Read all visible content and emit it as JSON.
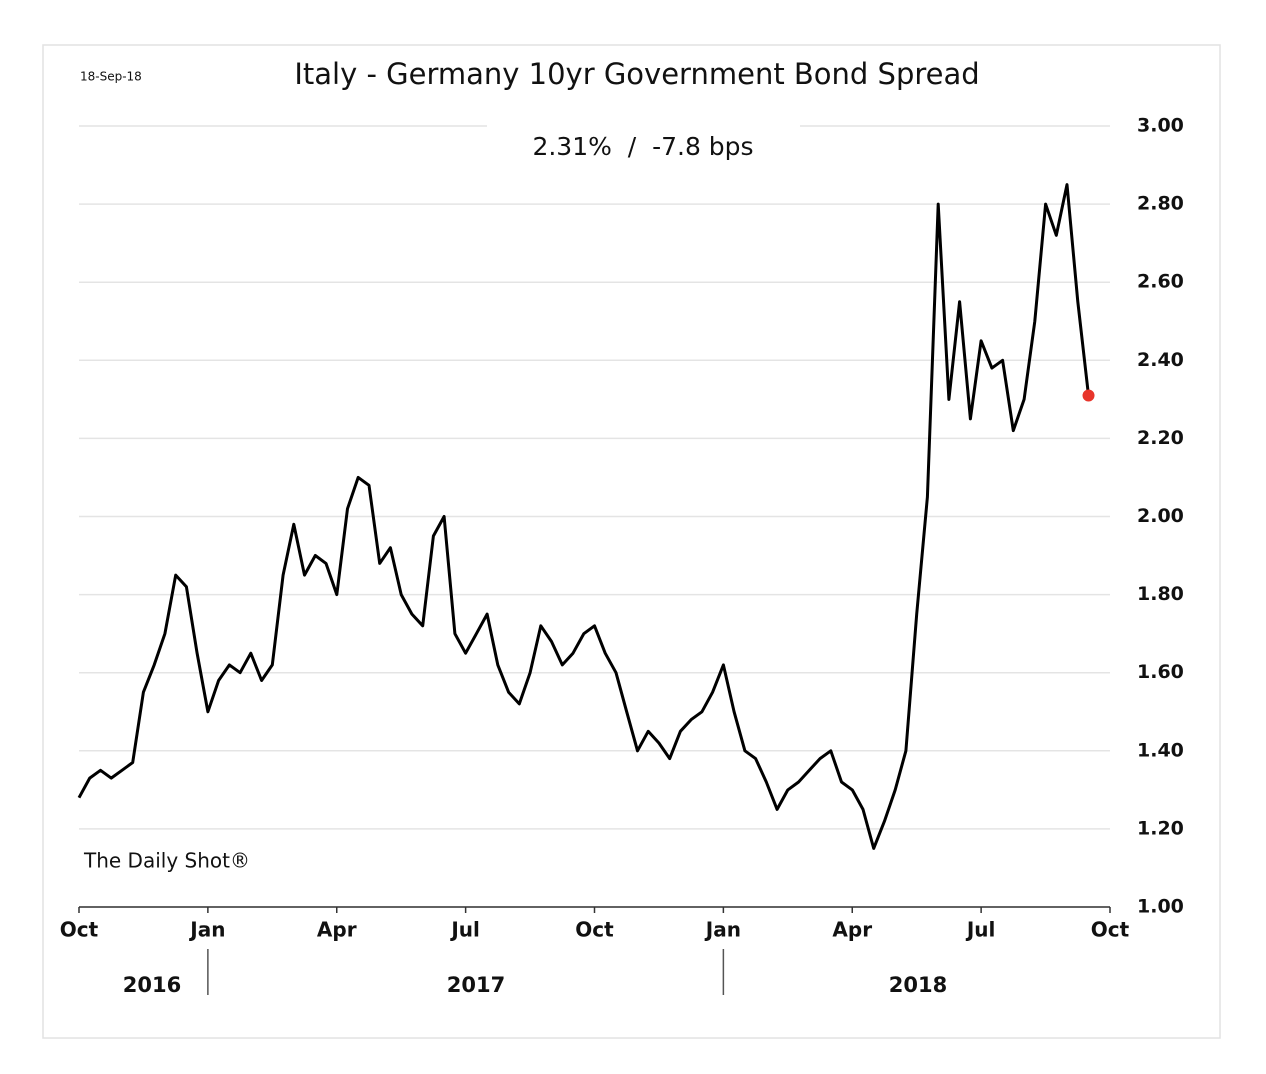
{
  "chart_data": {
    "type": "line",
    "date": "18-Sep-18",
    "title": "Italy - Germany 10yr Government Bond Spread",
    "subtitle": "2.31%  /  -7.8 bps",
    "source": "The Daily Shot®",
    "years": [
      "2016",
      "2017",
      "2018"
    ],
    "categories": [
      "Oct",
      null,
      null,
      null,
      null,
      null,
      null,
      null,
      null,
      null,
      null,
      null,
      "Jan",
      null,
      null,
      null,
      null,
      null,
      null,
      null,
      null,
      null,
      null,
      null,
      "Apr",
      null,
      null,
      null,
      null,
      null,
      null,
      null,
      null,
      null,
      null,
      null,
      "Jul",
      null,
      null,
      null,
      null,
      null,
      null,
      null,
      null,
      null,
      null,
      null,
      "Oct",
      null,
      null,
      null,
      null,
      null,
      null,
      null,
      null,
      null,
      null,
      null,
      "Jan",
      null,
      null,
      null,
      null,
      null,
      null,
      null,
      null,
      null,
      null,
      null,
      "Apr",
      null,
      null,
      null,
      null,
      null,
      null,
      null,
      null,
      null,
      null,
      null,
      "Jul",
      null,
      null,
      null,
      null,
      null,
      null,
      null,
      null,
      null,
      null,
      null,
      "Oct"
    ],
    "values": [
      1.28,
      1.33,
      1.35,
      1.33,
      1.35,
      1.37,
      1.55,
      1.62,
      1.7,
      1.85,
      1.82,
      1.65,
      1.5,
      1.58,
      1.62,
      1.6,
      1.65,
      1.58,
      1.62,
      1.85,
      1.98,
      1.85,
      1.9,
      1.88,
      1.8,
      2.02,
      2.1,
      2.08,
      1.88,
      1.92,
      1.8,
      1.75,
      1.72,
      1.95,
      2.0,
      1.7,
      1.65,
      1.7,
      1.75,
      1.62,
      1.55,
      1.52,
      1.6,
      1.72,
      1.68,
      1.62,
      1.65,
      1.7,
      1.72,
      1.65,
      1.6,
      1.5,
      1.4,
      1.45,
      1.42,
      1.38,
      1.45,
      1.48,
      1.5,
      1.55,
      1.62,
      1.5,
      1.4,
      1.38,
      1.32,
      1.25,
      1.3,
      1.32,
      1.35,
      1.38,
      1.4,
      1.32,
      1.3,
      1.25,
      1.15,
      1.22,
      1.3,
      1.4,
      1.75,
      2.05,
      2.8,
      2.3,
      2.55,
      2.25,
      2.45,
      2.38,
      2.4,
      2.22,
      2.3,
      2.5,
      2.8,
      2.72,
      2.85,
      2.55,
      2.31,
      null,
      null
    ],
    "color": "#000000",
    "last_point_color": "#e8352b",
    "ylim": [
      1.0,
      3.0
    ],
    "yticks": [
      {
        "value": 1.0,
        "label": "1.00"
      },
      {
        "value": 1.2,
        "label": "1.20"
      },
      {
        "value": 1.4,
        "label": "1.40"
      },
      {
        "value": 1.6,
        "label": "1.60"
      },
      {
        "value": 1.8,
        "label": "1.80"
      },
      {
        "value": 2.0,
        "label": "2.00"
      },
      {
        "value": 2.2,
        "label": "2.20"
      },
      {
        "value": 2.4,
        "label": "2.40"
      },
      {
        "value": 2.6,
        "label": "2.60"
      },
      {
        "value": 2.8,
        "label": "2.80"
      },
      {
        "value": 3.0,
        "label": "3.00"
      }
    ],
    "grid": true
  }
}
